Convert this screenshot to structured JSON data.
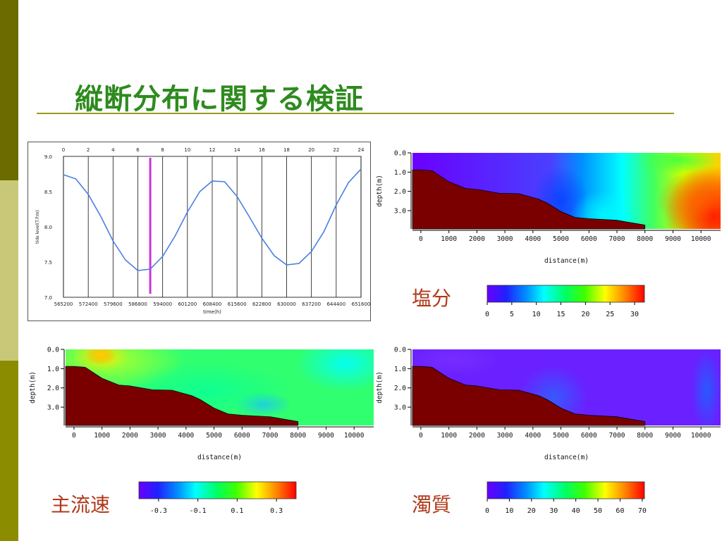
{
  "slide": {
    "title": "縦断分布に関する検証",
    "sidebar_colors": [
      "#6b6b00",
      "#c8c878",
      "#8c8c00"
    ],
    "title_color": "#2e8b1e"
  },
  "chart_data": [
    {
      "type": "line",
      "ylabel": "tide level(T.P.m)",
      "xlabel": "time(h)",
      "ylim": [
        7.0,
        9.0
      ],
      "yticks": [
        "9.0",
        "8.5",
        "8.0",
        "7.5",
        "7.0"
      ],
      "xticks_bottom": [
        "565200",
        "572400",
        "579600",
        "586800",
        "594000",
        "601200",
        "608400",
        "615600",
        "622800",
        "630000",
        "637200",
        "644400",
        "651600"
      ],
      "xticks_top": [
        "0",
        "2",
        "4",
        "6",
        "8",
        "10",
        "12",
        "14",
        "16",
        "18",
        "20",
        "22",
        "24"
      ],
      "x": [
        0,
        1,
        2,
        3,
        4,
        5,
        6,
        7,
        8,
        9,
        10,
        11,
        12,
        13,
        14,
        15,
        16,
        17,
        18,
        19,
        20,
        21,
        22,
        23,
        24
      ],
      "y": [
        8.74,
        8.68,
        8.46,
        8.15,
        7.8,
        7.53,
        7.38,
        7.4,
        7.58,
        7.87,
        8.21,
        8.5,
        8.65,
        8.64,
        8.43,
        8.14,
        7.84,
        7.59,
        7.46,
        7.48,
        7.65,
        7.93,
        8.31,
        8.63,
        8.82
      ],
      "marker_hour": 7,
      "line_color": "#4a7fe0",
      "marker_color": "#cc33dd"
    },
    {
      "type": "heatmap",
      "name": "salinity",
      "label": "塩分",
      "ylabel": "depth(m)",
      "xlabel": "distance(m)",
      "xticks": [
        "0",
        "1000",
        "2000",
        "3000",
        "4000",
        "5000",
        "6000",
        "7000",
        "8000",
        "9000",
        "10000"
      ],
      "yticks": [
        "0.0",
        "1.0",
        "2.0",
        "3.0"
      ],
      "colorbar_ticks": [
        "0",
        "5",
        "10",
        "15",
        "20",
        "25",
        "30"
      ]
    },
    {
      "type": "heatmap",
      "name": "velocity",
      "label": "主流速",
      "ylabel": "depth(m)",
      "xlabel": "distance(m)",
      "xticks": [
        "0",
        "1000",
        "2000",
        "3000",
        "4000",
        "5000",
        "6000",
        "7000",
        "8000",
        "9000",
        "10000"
      ],
      "yticks": [
        "0.0",
        "1.0",
        "2.0",
        "3.0"
      ],
      "colorbar_ticks": [
        "-0.3",
        "-0.1",
        "0.1",
        "0.3"
      ]
    },
    {
      "type": "heatmap",
      "name": "turbidity",
      "label": "濁質",
      "ylabel": "depth(m)",
      "xlabel": "distance(m)",
      "xticks": [
        "0",
        "1000",
        "2000",
        "3000",
        "4000",
        "5000",
        "6000",
        "7000",
        "8000",
        "9000",
        "10000"
      ],
      "yticks": [
        "0.0",
        "1.0",
        "2.0",
        "3.0"
      ],
      "colorbar_ticks": [
        "0",
        "10",
        "20",
        "30",
        "40",
        "50",
        "60",
        "70"
      ]
    }
  ]
}
